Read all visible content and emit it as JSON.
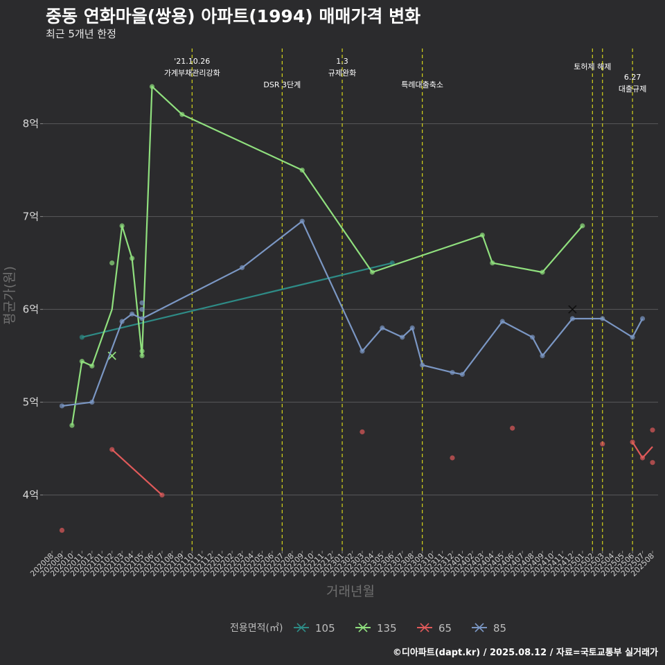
{
  "header": {
    "title": "중동 연화마을(쌍용) 아파트(1994) 매매가격 변화",
    "subtitle": "최근 5개년 한정"
  },
  "footer": {
    "credit": "©디아파트(dapt.kr) / 2025.08.12 / 자료=국토교통부 실거래가"
  },
  "chart_data": {
    "type": "line",
    "xlabel": "거래년월",
    "ylabel": "평균가(원)",
    "x_start": "2020-08",
    "x_end": "2025-08",
    "ylim": [
      3.4,
      8.9
    ],
    "yticks": [
      4,
      5,
      6,
      7,
      8
    ],
    "ytick_labels": [
      "4억",
      "5억",
      "6억",
      "7억",
      "8억"
    ],
    "xtick_labels": [
      "202008",
      "202009",
      "202010",
      "202011",
      "202012",
      "202101",
      "202102",
      "202103",
      "202104",
      "202105",
      "202106",
      "202107",
      "202108",
      "202109",
      "202110",
      "202111",
      "202112",
      "202201",
      "202202",
      "202203",
      "202204",
      "202205",
      "202206",
      "202207",
      "202208",
      "202209",
      "202210",
      "202211",
      "202212",
      "202301",
      "202302",
      "202303",
      "202304",
      "202305",
      "202306",
      "202307",
      "202308",
      "202309",
      "202310",
      "202311",
      "202312",
      "202401",
      "202402",
      "202403",
      "202404",
      "202405",
      "202406",
      "202407",
      "202408",
      "202409",
      "202410",
      "202411",
      "202412",
      "202501",
      "202502",
      "202503",
      "202504",
      "202505",
      "202506",
      "202507",
      "202508"
    ],
    "legend_title": "전용면적(㎡)",
    "legend_position": "bottom",
    "series": [
      {
        "name": "105",
        "color": "#2e8b86",
        "line": [
          [
            "2020-11",
            5.7
          ],
          [
            "2023-06",
            6.5
          ]
        ],
        "points": [
          [
            "2020-11",
            5.7
          ],
          [
            "2023-06",
            6.5
          ]
        ]
      },
      {
        "name": "135",
        "color": "#90e07e",
        "line": [
          [
            "2020-10",
            4.75
          ],
          [
            "2020-11",
            5.44
          ],
          [
            "2020-12",
            5.39
          ],
          [
            "2021-02",
            6.0
          ],
          [
            "2021-03",
            6.9
          ],
          [
            "2021-04",
            6.55
          ],
          [
            "2021-05",
            5.5
          ],
          [
            "2021-06",
            8.4
          ],
          [
            "2021-09",
            8.1
          ],
          [
            "2022-09",
            7.5
          ],
          [
            "2023-04",
            6.4
          ],
          [
            "2024-03",
            6.8
          ],
          [
            "2024-04",
            6.5
          ],
          [
            "2024-09",
            6.4
          ],
          [
            "2025-01",
            6.9
          ]
        ],
        "points": [
          [
            "2020-10",
            4.75
          ],
          [
            "2020-11",
            5.44
          ],
          [
            "2020-12",
            5.39
          ],
          [
            "2021-02",
            6.5
          ],
          [
            "2021-03",
            6.9
          ],
          [
            "2021-04",
            6.55
          ],
          [
            "2021-05",
            5.5
          ],
          [
            "2021-05",
            5.55
          ],
          [
            "2021-06",
            8.4
          ],
          [
            "2021-09",
            8.1
          ],
          [
            "2022-09",
            7.5
          ],
          [
            "2023-04",
            6.4
          ],
          [
            "2024-03",
            6.8
          ],
          [
            "2024-04",
            6.5
          ],
          [
            "2024-09",
            6.4
          ],
          [
            "2025-01",
            6.9
          ]
        ],
        "cross": [
          [
            "2021-02",
            5.5
          ]
        ]
      },
      {
        "name": "65",
        "color": "#e05a5a",
        "line": [
          [
            "2021-02",
            4.49
          ],
          [
            "2021-07",
            4.0
          ]
        ],
        "line2": [
          [
            "2025-06",
            4.57
          ],
          [
            "2025-07",
            4.4
          ],
          [
            "2025-08",
            4.52
          ]
        ],
        "points": [
          [
            "2020-09",
            3.62
          ],
          [
            "2021-02",
            4.49
          ],
          [
            "2021-07",
            4.0
          ],
          [
            "2023-03",
            4.68
          ],
          [
            "2023-12",
            4.4
          ],
          [
            "2024-06",
            4.72
          ],
          [
            "2025-03",
            4.55
          ],
          [
            "2025-06",
            4.57
          ],
          [
            "2025-07",
            4.4
          ],
          [
            "2025-08",
            4.7
          ],
          [
            "2025-08",
            4.35
          ]
        ]
      },
      {
        "name": "85",
        "color": "#7b97c4",
        "line": [
          [
            "2020-09",
            4.96
          ],
          [
            "2020-12",
            5.0
          ],
          [
            "2021-03",
            5.87
          ],
          [
            "2021-04",
            5.95
          ],
          [
            "2021-05",
            5.9
          ],
          [
            "2022-03",
            6.45
          ],
          [
            "2022-09",
            6.95
          ],
          [
            "2023-03",
            5.55
          ],
          [
            "2023-05",
            5.8
          ],
          [
            "2023-07",
            5.7
          ],
          [
            "2023-08",
            5.8
          ],
          [
            "2023-09",
            5.4
          ],
          [
            "2023-12",
            5.32
          ],
          [
            "2024-01",
            5.3
          ],
          [
            "2024-05",
            5.87
          ],
          [
            "2024-08",
            5.7
          ],
          [
            "2024-09",
            5.5
          ],
          [
            "2024-12",
            5.9
          ],
          [
            "2025-03",
            5.9
          ],
          [
            "2025-06",
            5.7
          ],
          [
            "2025-07",
            5.9
          ]
        ],
        "points": [
          [
            "2020-09",
            4.96
          ],
          [
            "2020-12",
            5.0
          ],
          [
            "2021-03",
            5.87
          ],
          [
            "2021-04",
            5.95
          ],
          [
            "2021-05",
            5.9
          ],
          [
            "2021-05",
            6.0
          ],
          [
            "2021-05",
            6.07
          ],
          [
            "2022-03",
            6.45
          ],
          [
            "2022-09",
            6.95
          ],
          [
            "2023-03",
            5.55
          ],
          [
            "2023-05",
            5.8
          ],
          [
            "2023-07",
            5.7
          ],
          [
            "2023-08",
            5.8
          ],
          [
            "2023-09",
            5.4
          ],
          [
            "2023-12",
            5.32
          ],
          [
            "2024-01",
            5.3
          ],
          [
            "2024-05",
            5.87
          ],
          [
            "2024-08",
            5.7
          ],
          [
            "2024-09",
            5.5
          ],
          [
            "2024-12",
            5.9
          ],
          [
            "2025-03",
            5.9
          ],
          [
            "2025-06",
            5.7
          ],
          [
            "2025-07",
            5.9
          ]
        ],
        "cross": [
          [
            "2024-12",
            6.0
          ]
        ]
      }
    ],
    "events": [
      {
        "date": "2021-10",
        "lines": [
          "'21.10.26",
          "가계부채관리강화"
        ],
        "row": 0
      },
      {
        "date": "2022-07",
        "lines": [
          "DSR 3단계"
        ],
        "row": 2
      },
      {
        "date": "2023-01",
        "lines": [
          "1.3",
          "규제완화"
        ],
        "row": 0
      },
      {
        "date": "2023-09",
        "lines": [
          "특례대출축소"
        ],
        "row": 2
      },
      {
        "date": "2025-02",
        "lines": [
          "토허제 해제"
        ],
        "row": 1
      },
      {
        "date": "2025-03",
        "lines": [],
        "row": 1
      },
      {
        "date": "2025-06",
        "lines": [
          "6.27",
          "대출규제"
        ],
        "row": 3
      }
    ]
  }
}
